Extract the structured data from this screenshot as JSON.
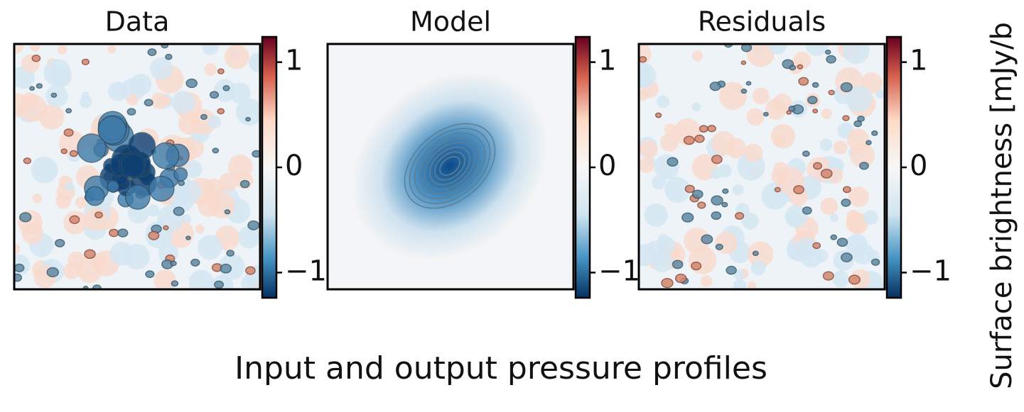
{
  "panels": [
    {
      "title": "Data",
      "colorbar": {
        "lim": [
          -1.24,
          1.24
        ],
        "ticks": [
          1,
          0,
          {
            "value": -1,
            "label": "−1"
          }
        ]
      }
    },
    {
      "title": "Model",
      "colorbar": {
        "lim": [
          -1.24,
          1.24
        ],
        "ticks": [
          1,
          0,
          {
            "value": -1,
            "label": "−1"
          }
        ]
      }
    },
    {
      "title": "Residuals",
      "colorbar": {
        "lim": [
          -1.24,
          1.24
        ],
        "ticks": [
          1,
          0,
          {
            "value": -1,
            "label": "−1"
          }
        ]
      }
    }
  ],
  "colorbar_label": "Surface brightness [mJy/b",
  "caption": "Input and output pressure profiles"
}
